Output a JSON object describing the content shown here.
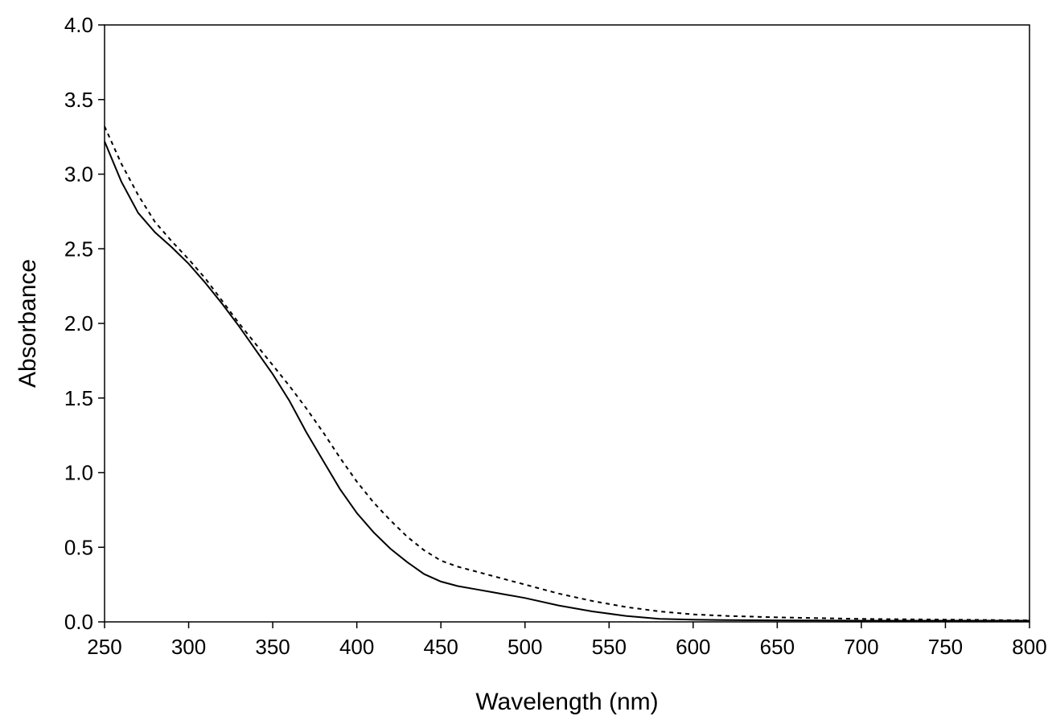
{
  "chart_data": {
    "type": "line",
    "title": "",
    "xlabel": "Wavelength (nm)",
    "ylabel": "Absorbance",
    "xlim": [
      250,
      800
    ],
    "ylim": [
      0,
      4
    ],
    "xticks": [
      250,
      300,
      350,
      400,
      450,
      500,
      550,
      600,
      650,
      700,
      750,
      800
    ],
    "yticks": [
      0,
      0.5,
      1,
      1.5,
      2,
      2.5,
      3,
      3.5,
      4
    ],
    "xtick_labels": [
      "250",
      "300",
      "350",
      "400",
      "450",
      "500",
      "550",
      "600",
      "650",
      "700",
      "750",
      "800"
    ],
    "ytick_labels": [
      "0.0",
      "0.5",
      "1.0",
      "1.5",
      "2.0",
      "2.5",
      "3.0",
      "3.5",
      "4.0"
    ],
    "grid": false,
    "legend": "none",
    "series": [
      {
        "style": "solid",
        "color": "#000000",
        "x": [
          250,
          260,
          270,
          280,
          290,
          300,
          310,
          320,
          330,
          340,
          350,
          360,
          370,
          380,
          390,
          400,
          410,
          420,
          430,
          440,
          450,
          460,
          470,
          480,
          490,
          500,
          520,
          540,
          560,
          580,
          600,
          620,
          650,
          700,
          750,
          800
        ],
        "y": [
          3.22,
          2.95,
          2.74,
          2.61,
          2.51,
          2.4,
          2.27,
          2.13,
          1.98,
          1.82,
          1.66,
          1.48,
          1.27,
          1.08,
          0.89,
          0.73,
          0.6,
          0.49,
          0.4,
          0.32,
          0.27,
          0.24,
          0.22,
          0.2,
          0.18,
          0.16,
          0.11,
          0.07,
          0.04,
          0.02,
          0.015,
          0.012,
          0.01,
          0.008,
          0.008,
          0.008
        ]
      },
      {
        "style": "dotted",
        "color": "#000000",
        "x": [
          250,
          260,
          270,
          280,
          290,
          300,
          310,
          320,
          330,
          340,
          350,
          360,
          370,
          380,
          390,
          400,
          410,
          420,
          430,
          440,
          450,
          460,
          470,
          480,
          490,
          500,
          520,
          540,
          560,
          580,
          600,
          620,
          650,
          700,
          750,
          800
        ],
        "y": [
          3.32,
          3.07,
          2.86,
          2.68,
          2.55,
          2.43,
          2.3,
          2.15,
          2.0,
          1.86,
          1.72,
          1.58,
          1.43,
          1.27,
          1.1,
          0.94,
          0.8,
          0.68,
          0.57,
          0.48,
          0.41,
          0.37,
          0.34,
          0.31,
          0.28,
          0.25,
          0.19,
          0.14,
          0.1,
          0.07,
          0.05,
          0.04,
          0.03,
          0.02,
          0.015,
          0.01
        ]
      }
    ]
  }
}
